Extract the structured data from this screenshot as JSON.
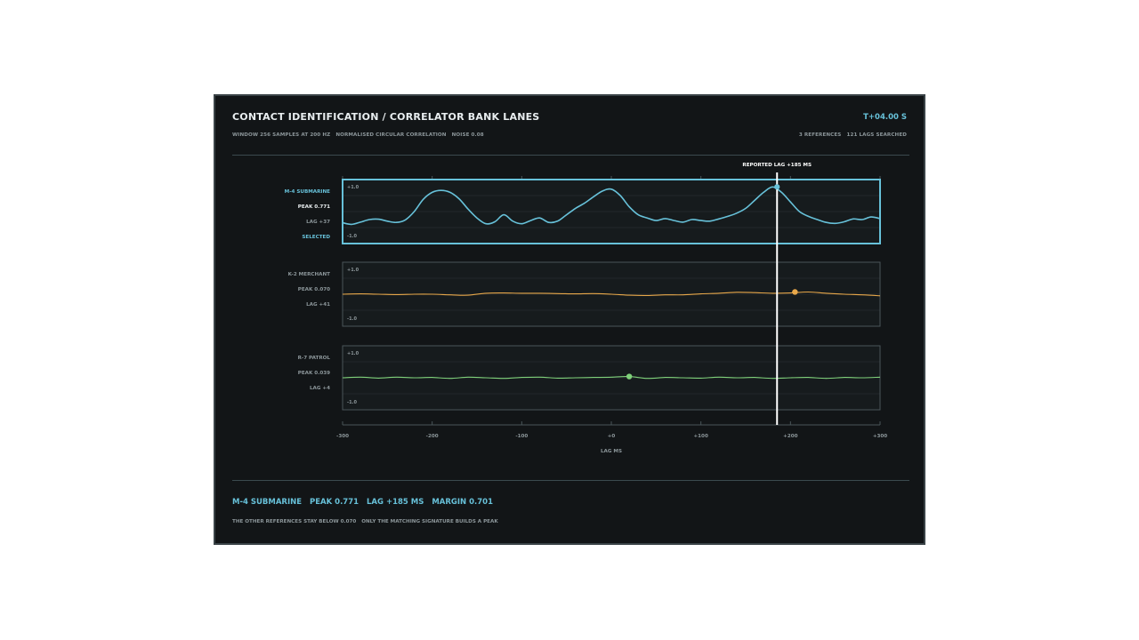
{
  "header": {
    "title": "CONTACT IDENTIFICATION / CORRELATOR BANK LANES",
    "time": "T+04.00 S",
    "subtitle_left": [
      "WINDOW 256 SAMPLES AT 200 HZ",
      "NORMALISED CIRCULAR CORRELATION",
      "NOISE 0.08"
    ],
    "subtitle_right": [
      "3 REFERENCES",
      "121 LAGS SEARCHED"
    ]
  },
  "footer": {
    "main": [
      "M-4 SUBMARINE",
      "PEAK 0.771",
      "LAG +185 MS",
      "MARGIN 0.701"
    ],
    "note": [
      "THE OTHER REFERENCES STAY BELOW 0.070",
      "ONLY THE MATCHING SIGNATURE BUILDS A PEAK"
    ]
  },
  "colors": {
    "background": "#121517",
    "selected": "#67c1d9",
    "k2": "#e8a84a",
    "r7": "#7fd17a",
    "marker": "#ffffff"
  },
  "chart_data": {
    "type": "line",
    "xlabel": "LAG MS",
    "xlim": [
      -300,
      300
    ],
    "xticks": [
      "-300",
      "-200",
      "-100",
      "+0",
      "+100",
      "+200",
      "+300"
    ],
    "ylim": [
      -1,
      1
    ],
    "ytick_top": "+1.0",
    "ytick_bottom": "-1.0",
    "marker": {
      "label": "REPORTED LAG +185 MS",
      "x": 185
    },
    "lanes": [
      {
        "name": "M-4 SUBMARINE",
        "peak_label": "PEAK 0.771",
        "lag_label": "LAG +37",
        "status": "SELECTED",
        "color": "#67c1d9",
        "selected": true,
        "peak": {
          "x": 185,
          "y": 0.77
        },
        "x": [
          -300,
          -290,
          -280,
          -270,
          -260,
          -250,
          -240,
          -230,
          -220,
          -210,
          -200,
          -190,
          -180,
          -170,
          -160,
          -150,
          -140,
          -130,
          -120,
          -110,
          -100,
          -90,
          -80,
          -70,
          -60,
          -50,
          -40,
          -30,
          -20,
          -10,
          0,
          10,
          20,
          30,
          40,
          50,
          60,
          70,
          80,
          90,
          100,
          110,
          120,
          130,
          140,
          150,
          160,
          170,
          180,
          190,
          200,
          210,
          220,
          230,
          240,
          250,
          260,
          270,
          280,
          290,
          300
        ],
        "y": [
          -0.35,
          -0.4,
          -0.33,
          -0.25,
          -0.24,
          -0.3,
          -0.34,
          -0.26,
          0.0,
          0.38,
          0.6,
          0.66,
          0.6,
          0.4,
          0.08,
          -0.2,
          -0.38,
          -0.32,
          -0.1,
          -0.3,
          -0.38,
          -0.28,
          -0.2,
          -0.34,
          -0.3,
          -0.1,
          0.1,
          0.26,
          0.46,
          0.64,
          0.7,
          0.5,
          0.15,
          -0.1,
          -0.2,
          -0.28,
          -0.22,
          -0.28,
          -0.33,
          -0.25,
          -0.28,
          -0.3,
          -0.23,
          -0.15,
          -0.05,
          0.1,
          0.35,
          0.6,
          0.77,
          0.6,
          0.3,
          0.0,
          -0.15,
          -0.25,
          -0.34,
          -0.37,
          -0.32,
          -0.23,
          -0.25,
          -0.17,
          -0.22
        ]
      },
      {
        "name": "K-2 MERCHANT",
        "peak_label": "PEAK 0.070",
        "lag_label": "LAG +41",
        "status": "",
        "color": "#e8a84a",
        "selected": false,
        "peak": {
          "x": 205,
          "y": 0.07
        },
        "x": [
          -300,
          -280,
          -260,
          -240,
          -220,
          -200,
          -180,
          -160,
          -140,
          -120,
          -100,
          -80,
          -60,
          -40,
          -20,
          0,
          20,
          40,
          60,
          80,
          100,
          120,
          140,
          160,
          180,
          200,
          220,
          240,
          260,
          280,
          300
        ],
        "y": [
          0.0,
          0.01,
          0.0,
          -0.01,
          0.0,
          0.0,
          -0.02,
          -0.03,
          0.03,
          0.04,
          0.03,
          0.03,
          0.02,
          0.01,
          0.02,
          0.0,
          -0.03,
          -0.04,
          -0.02,
          -0.02,
          0.01,
          0.03,
          0.06,
          0.05,
          0.03,
          0.04,
          0.07,
          0.03,
          0.0,
          -0.02,
          -0.05
        ]
      },
      {
        "name": "R-7 PATROL",
        "peak_label": "PEAK 0.039",
        "lag_label": "LAG +4",
        "status": "",
        "color": "#7fd17a",
        "selected": false,
        "peak": {
          "x": 20,
          "y": 0.04
        },
        "x": [
          -300,
          -280,
          -260,
          -240,
          -220,
          -200,
          -180,
          -160,
          -140,
          -120,
          -100,
          -80,
          -60,
          -40,
          -20,
          0,
          20,
          40,
          60,
          80,
          100,
          120,
          140,
          160,
          180,
          200,
          220,
          240,
          260,
          280,
          300
        ],
        "y": [
          0.0,
          0.02,
          -0.01,
          0.02,
          0.0,
          0.01,
          -0.02,
          0.02,
          0.0,
          -0.02,
          0.01,
          0.02,
          -0.01,
          0.0,
          0.01,
          0.02,
          0.04,
          -0.02,
          0.01,
          0.0,
          -0.01,
          0.02,
          0.0,
          0.01,
          -0.02,
          0.0,
          0.01,
          -0.02,
          0.01,
          0.0,
          0.02
        ]
      }
    ]
  }
}
